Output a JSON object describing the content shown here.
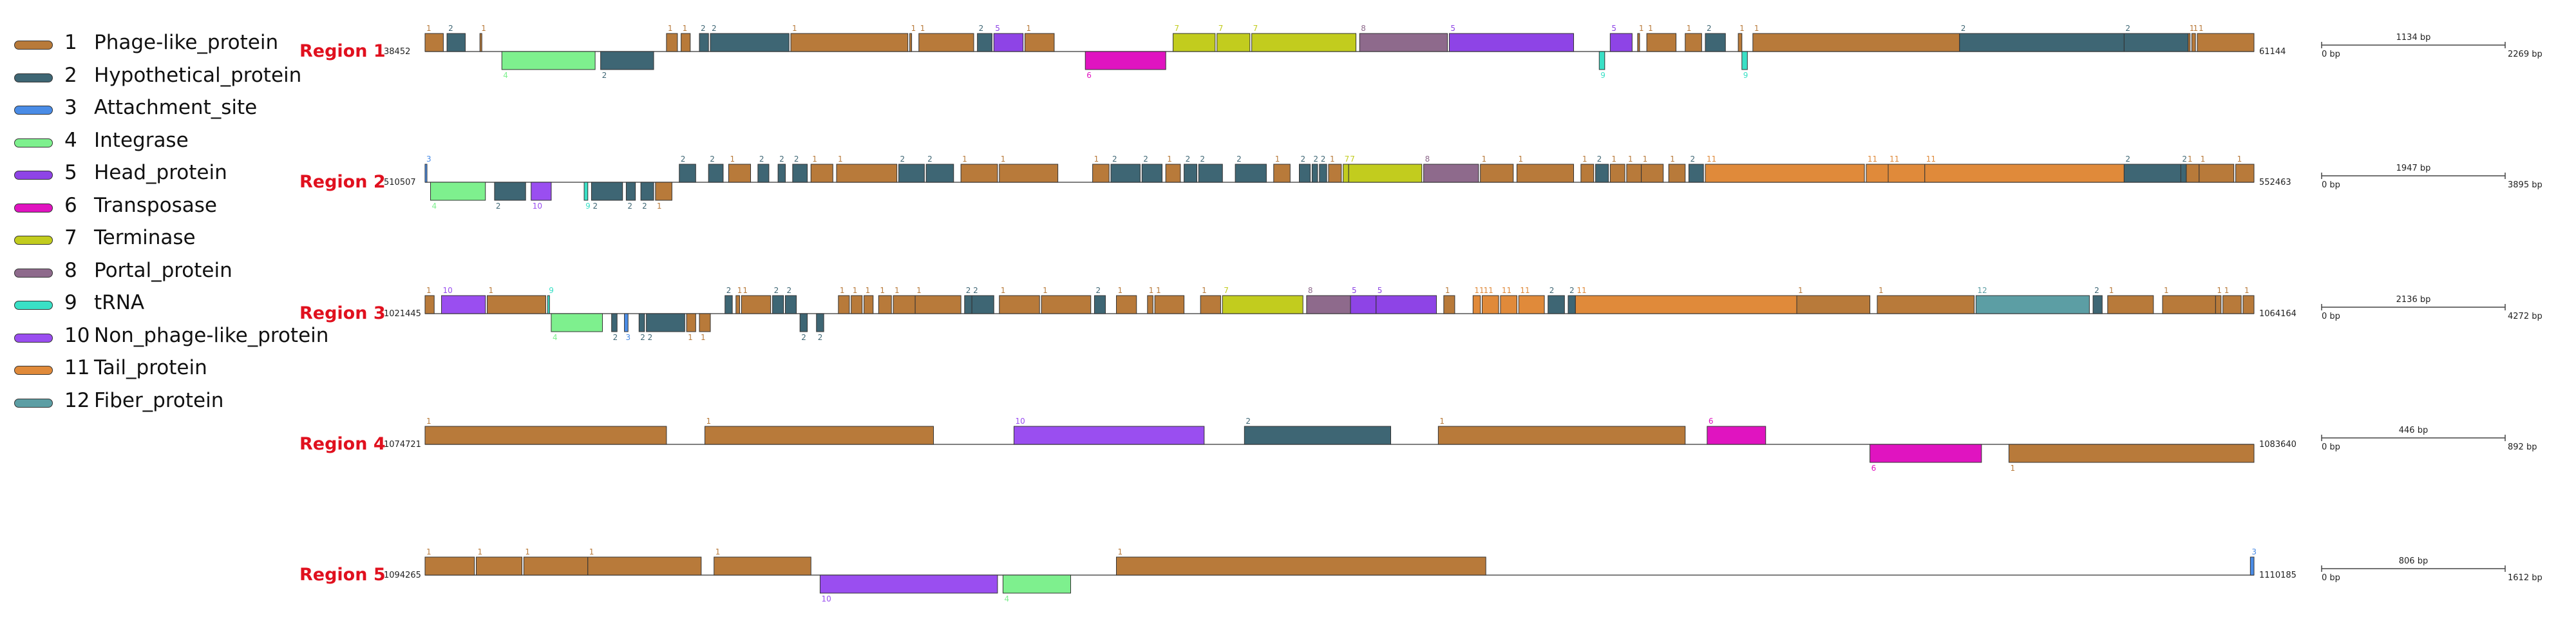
{
  "legend": [
    {
      "num": "1",
      "label": "Phage-like_protein",
      "color": "#b87a3a",
      "icon": "gene-type-swatch"
    },
    {
      "num": "2",
      "label": "Hypothetical_protein",
      "color": "#3e6674",
      "icon": "gene-type-swatch"
    },
    {
      "num": "3",
      "label": "Attachment_site",
      "color": "#4a8ce6",
      "icon": "gene-type-swatch"
    },
    {
      "num": "4",
      "label": "Integrase",
      "color": "#7ef08e",
      "icon": "gene-type-swatch"
    },
    {
      "num": "5",
      "label": "Head_protein",
      "color": "#8e44e6",
      "icon": "gene-type-swatch"
    },
    {
      "num": "6",
      "label": "Transposase",
      "color": "#e014c0",
      "icon": "gene-type-swatch"
    },
    {
      "num": "7",
      "label": "Terminase",
      "color": "#c2cc1e",
      "icon": "gene-type-swatch"
    },
    {
      "num": "8",
      "label": "Portal_protein",
      "color": "#8e6a8c",
      "icon": "gene-type-swatch"
    },
    {
      "num": "9",
      "label": "tRNA",
      "color": "#3ae0c6",
      "icon": "gene-type-swatch"
    },
    {
      "num": "10",
      "label": "Non_phage-like_protein",
      "color": "#9a4ef0",
      "icon": "gene-type-swatch"
    },
    {
      "num": "11",
      "label": "Tail_protein",
      "color": "#e08a3a",
      "icon": "gene-type-swatch"
    },
    {
      "num": "12",
      "label": "Fiber_protein",
      "color": "#5c9ea4",
      "icon": "gene-type-swatch"
    }
  ],
  "regions": [
    {
      "label": "Region 1",
      "start": "38452",
      "end": "61144",
      "scale": {
        "value": "1134 bp",
        "min": "0 bp",
        "max": "2269 bp"
      },
      "genes": [
        [
          0.0,
          1.0,
          1,
          1
        ],
        [
          1.2,
          2.2,
          1,
          2
        ],
        [
          3.0,
          3.1,
          1,
          1
        ],
        [
          4.2,
          9.3,
          -1,
          4
        ],
        [
          9.6,
          12.5,
          -1,
          2
        ],
        [
          13.2,
          13.8,
          1,
          1
        ],
        [
          14.0,
          14.5,
          1,
          1
        ],
        [
          15.0,
          15.5,
          1,
          2
        ],
        [
          15.6,
          19.9,
          1,
          2
        ],
        [
          20.0,
          26.4,
          1,
          1
        ],
        [
          26.5,
          26.6,
          1,
          1
        ],
        [
          27.0,
          30.0,
          1,
          1
        ],
        [
          30.2,
          31.0,
          1,
          2
        ],
        [
          31.1,
          32.7,
          1,
          5
        ],
        [
          32.8,
          34.4,
          1,
          1
        ],
        [
          36.1,
          40.5,
          -1,
          6
        ],
        [
          40.9,
          43.2,
          1,
          7
        ],
        [
          43.3,
          45.1,
          1,
          7
        ],
        [
          45.2,
          50.9,
          1,
          7
        ],
        [
          51.1,
          55.9,
          1,
          8
        ],
        [
          56.0,
          62.8,
          1,
          5
        ],
        [
          64.2,
          64.5,
          -1,
          9
        ],
        [
          64.8,
          66.0,
          1,
          5
        ],
        [
          66.3,
          66.4,
          1,
          1
        ],
        [
          66.8,
          68.4,
          1,
          1
        ],
        [
          68.9,
          69.8,
          1,
          1
        ],
        [
          70.0,
          71.1,
          1,
          2
        ],
        [
          71.8,
          72.0,
          1,
          1
        ],
        [
          72.0,
          72.3,
          -1,
          9
        ],
        [
          72.6,
          83.9,
          1,
          1
        ],
        [
          83.9,
          92.9,
          1,
          2
        ],
        [
          92.9,
          96.4,
          1,
          2
        ],
        [
          96.4,
          96.5,
          1,
          1
        ],
        [
          96.6,
          96.8,
          1,
          1
        ],
        [
          96.9,
          100.0,
          1,
          1
        ]
      ]
    },
    {
      "label": "Region 2",
      "start": "510507",
      "end": "552463",
      "scale": {
        "value": "1947 bp",
        "min": "0 bp",
        "max": "3895 bp"
      },
      "genes": [
        [
          0.0,
          0.1,
          1,
          3
        ],
        [
          0.3,
          3.3,
          -1,
          4
        ],
        [
          3.8,
          5.5,
          -1,
          2
        ],
        [
          5.8,
          6.9,
          -1,
          10
        ],
        [
          8.7,
          8.9,
          -1,
          9
        ],
        [
          9.1,
          10.8,
          -1,
          2
        ],
        [
          11.0,
          11.5,
          -1,
          2
        ],
        [
          11.8,
          12.5,
          -1,
          2
        ],
        [
          12.6,
          13.5,
          -1,
          1
        ],
        [
          13.9,
          14.8,
          1,
          2
        ],
        [
          15.5,
          16.3,
          1,
          2
        ],
        [
          16.6,
          17.8,
          1,
          1
        ],
        [
          18.2,
          18.8,
          1,
          2
        ],
        [
          19.3,
          19.7,
          1,
          2
        ],
        [
          20.1,
          20.9,
          1,
          2
        ],
        [
          21.1,
          22.3,
          1,
          1
        ],
        [
          22.5,
          25.8,
          1,
          1
        ],
        [
          25.9,
          27.3,
          1,
          2
        ],
        [
          27.4,
          28.9,
          1,
          2
        ],
        [
          29.3,
          31.3,
          1,
          1
        ],
        [
          31.4,
          34.6,
          1,
          1
        ],
        [
          36.5,
          37.4,
          1,
          1
        ],
        [
          37.5,
          39.1,
          1,
          2
        ],
        [
          39.2,
          40.3,
          1,
          2
        ],
        [
          40.5,
          41.3,
          1,
          1
        ],
        [
          41.5,
          42.2,
          1,
          2
        ],
        [
          42.3,
          43.6,
          1,
          2
        ],
        [
          44.3,
          46.0,
          1,
          2
        ],
        [
          46.4,
          47.3,
          1,
          1
        ],
        [
          47.8,
          48.4,
          1,
          2
        ],
        [
          48.5,
          48.8,
          1,
          2
        ],
        [
          48.9,
          49.3,
          1,
          2
        ],
        [
          49.4,
          50.1,
          1,
          1
        ],
        [
          50.2,
          50.5,
          1,
          7
        ],
        [
          50.5,
          54.5,
          1,
          7
        ],
        [
          54.6,
          57.6,
          1,
          8
        ],
        [
          57.7,
          59.5,
          1,
          1
        ],
        [
          59.7,
          62.8,
          1,
          1
        ],
        [
          63.2,
          63.9,
          1,
          1
        ],
        [
          64.0,
          64.7,
          1,
          2
        ],
        [
          64.8,
          65.6,
          1,
          1
        ],
        [
          65.7,
          66.5,
          1,
          1
        ],
        [
          66.5,
          67.7,
          1,
          1
        ],
        [
          68.0,
          68.9,
          1,
          1
        ],
        [
          69.1,
          69.9,
          1,
          2
        ],
        [
          70.0,
          78.7,
          1,
          11
        ],
        [
          78.8,
          80.0,
          1,
          11
        ],
        [
          80.0,
          82.0,
          1,
          11
        ],
        [
          82.0,
          92.9,
          1,
          11
        ],
        [
          92.9,
          96.0,
          1,
          2
        ],
        [
          96.0,
          96.3,
          1,
          2
        ],
        [
          96.3,
          97.0,
          1,
          1
        ],
        [
          97.0,
          98.9,
          1,
          1
        ],
        [
          99.0,
          100.0,
          1,
          1
        ]
      ]
    },
    {
      "label": "Region 3",
      "start": "1021445",
      "end": "1064164",
      "scale": {
        "value": "2136 bp",
        "min": "0 bp",
        "max": "4272 bp"
      },
      "genes": [
        [
          0.0,
          0.5,
          1,
          1
        ],
        [
          0.9,
          3.3,
          1,
          10
        ],
        [
          3.4,
          6.6,
          1,
          1
        ],
        [
          6.7,
          6.8,
          1,
          9
        ],
        [
          6.9,
          9.7,
          -1,
          4
        ],
        [
          10.2,
          10.5,
          -1,
          2
        ],
        [
          10.9,
          11.1,
          -1,
          3
        ],
        [
          11.7,
          12.0,
          -1,
          2
        ],
        [
          12.1,
          14.2,
          -1,
          2
        ],
        [
          14.3,
          14.8,
          -1,
          1
        ],
        [
          15.0,
          15.6,
          -1,
          1
        ],
        [
          16.4,
          16.8,
          1,
          2
        ],
        [
          17.0,
          17.2,
          1,
          1
        ],
        [
          17.3,
          18.9,
          1,
          1
        ],
        [
          19.0,
          19.6,
          1,
          2
        ],
        [
          19.7,
          20.3,
          1,
          2
        ],
        [
          20.5,
          20.9,
          -1,
          2
        ],
        [
          21.4,
          21.8,
          -1,
          2
        ],
        [
          22.6,
          23.2,
          1,
          1
        ],
        [
          23.3,
          23.9,
          1,
          1
        ],
        [
          24.0,
          24.5,
          1,
          1
        ],
        [
          24.8,
          25.5,
          1,
          1
        ],
        [
          25.6,
          26.8,
          1,
          1
        ],
        [
          26.8,
          29.3,
          1,
          1
        ],
        [
          29.5,
          29.9,
          1,
          2
        ],
        [
          29.9,
          31.1,
          1,
          2
        ],
        [
          31.4,
          33.6,
          1,
          1
        ],
        [
          33.7,
          36.4,
          1,
          1
        ],
        [
          36.6,
          37.2,
          1,
          2
        ],
        [
          37.8,
          38.9,
          1,
          1
        ],
        [
          39.5,
          39.8,
          1,
          1
        ],
        [
          39.9,
          41.5,
          1,
          1
        ],
        [
          42.4,
          43.5,
          1,
          1
        ],
        [
          43.6,
          48.0,
          1,
          7
        ],
        [
          48.2,
          50.6,
          1,
          8
        ],
        [
          50.6,
          52.0,
          1,
          5
        ],
        [
          52.0,
          55.3,
          1,
          5
        ],
        [
          55.7,
          56.3,
          1,
          1
        ],
        [
          57.3,
          57.7,
          1,
          11
        ],
        [
          57.8,
          58.7,
          1,
          11
        ],
        [
          58.8,
          59.7,
          1,
          11
        ],
        [
          59.8,
          61.2,
          1,
          11
        ],
        [
          61.4,
          62.3,
          1,
          2
        ],
        [
          62.5,
          62.9,
          1,
          2
        ],
        [
          62.9,
          75.0,
          1,
          11
        ],
        [
          75.0,
          79.0,
          1,
          1
        ],
        [
          79.4,
          84.7,
          1,
          1
        ],
        [
          84.8,
          91.0,
          1,
          12
        ],
        [
          91.2,
          91.7,
          1,
          2
        ],
        [
          92.0,
          94.5,
          1,
          1
        ],
        [
          95.0,
          97.9,
          1,
          1
        ],
        [
          97.9,
          98.2,
          1,
          1
        ],
        [
          98.3,
          99.3,
          1,
          1
        ],
        [
          99.4,
          100.0,
          1,
          1
        ]
      ]
    },
    {
      "label": "Region 4",
      "start": "1074721",
      "end": "1083640",
      "scale": {
        "value": "446 bp",
        "min": "0 bp",
        "max": "892 bp"
      },
      "genes": [
        [
          0.0,
          13.2,
          1,
          1
        ],
        [
          15.3,
          27.8,
          1,
          1
        ],
        [
          32.2,
          42.6,
          1,
          10
        ],
        [
          44.8,
          52.8,
          1,
          2
        ],
        [
          55.4,
          68.9,
          1,
          1
        ],
        [
          70.1,
          73.3,
          1,
          6
        ],
        [
          79.0,
          85.1,
          -1,
          6
        ],
        [
          86.6,
          100.0,
          -1,
          1
        ]
      ]
    },
    {
      "label": "Region 5",
      "start": "1094265",
      "end": "1110185",
      "scale": {
        "value": "806 bp",
        "min": "0 bp",
        "max": "1612 bp"
      },
      "genes": [
        [
          0.0,
          2.7,
          1,
          1
        ],
        [
          2.8,
          5.3,
          1,
          1
        ],
        [
          5.4,
          8.9,
          1,
          1
        ],
        [
          8.9,
          15.1,
          1,
          1
        ],
        [
          15.8,
          21.1,
          1,
          1
        ],
        [
          21.6,
          31.3,
          -1,
          10
        ],
        [
          31.6,
          35.3,
          -1,
          4
        ],
        [
          37.8,
          58.0,
          1,
          1
        ],
        [
          99.8,
          100.0,
          1,
          3
        ]
      ]
    }
  ]
}
